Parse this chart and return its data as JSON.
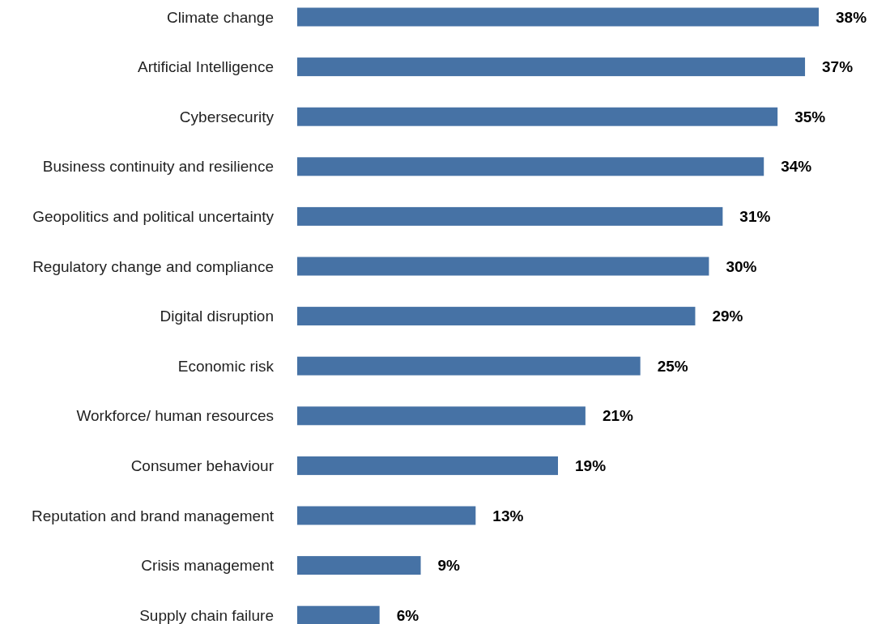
{
  "chart_data": {
    "type": "bar",
    "orientation": "horizontal",
    "categories": [
      "Climate change",
      "Artificial Intelligence",
      "Cybersecurity",
      "Business continuity and resilience",
      "Geopolitics and political uncertainty",
      "Regulatory change and compliance",
      "Digital disruption",
      "Economic risk",
      "Workforce/ human resources",
      "Consumer behaviour",
      "Reputation and brand management",
      "Crisis management",
      "Supply chain failure"
    ],
    "values": [
      38,
      37,
      35,
      34,
      31,
      30,
      29,
      25,
      21,
      19,
      13,
      9,
      6
    ],
    "value_labels": [
      "38%",
      "37%",
      "35%",
      "34%",
      "31%",
      "30%",
      "29%",
      "25%",
      "21%",
      "19%",
      "13%",
      "9%",
      "6%"
    ],
    "color": "#4672a5"
  }
}
